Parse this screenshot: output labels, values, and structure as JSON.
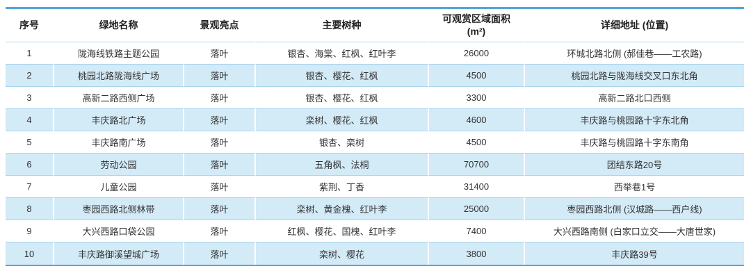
{
  "colors": {
    "accent_border": "#54A7DA",
    "row_separator": "#A9D4EE",
    "alt_row_bg": "#D3EAF7",
    "header_text": "#1F1F1F",
    "body_text": "#333333"
  },
  "table": {
    "headers": [
      {
        "label": "序号"
      },
      {
        "label": "绿地名称"
      },
      {
        "label": "景观亮点"
      },
      {
        "label": "主要树种"
      },
      {
        "label": "可观赏区域面积",
        "unit": "(m²)"
      },
      {
        "label": "详细地址 (位置)"
      }
    ],
    "rows": [
      {
        "no": "1",
        "name": "陇海线铁路主题公园",
        "highlight": "落叶",
        "trees": "银杏、海棠、红枫、红叶李",
        "area": "26000",
        "address": "环城北路北侧 (郝佳巷——工农路)"
      },
      {
        "no": "2",
        "name": "桃园北路陇海线广场",
        "highlight": "落叶",
        "trees": "银杏、樱花、红枫",
        "area": "4500",
        "address": "桃园北路与陇海线交叉口东北角"
      },
      {
        "no": "3",
        "name": "高新二路西侧广场",
        "highlight": "落叶",
        "trees": "银杏、樱花、红枫",
        "area": "3300",
        "address": "高新二路北口西侧"
      },
      {
        "no": "4",
        "name": "丰庆路北广场",
        "highlight": "落叶",
        "trees": "栾树、樱花、红枫",
        "area": "4600",
        "address": "丰庆路与桃园路十字东北角"
      },
      {
        "no": "5",
        "name": "丰庆路南广场",
        "highlight": "落叶",
        "trees": "银杏、栾树",
        "area": "4500",
        "address": "丰庆路与桃园路十字东南角"
      },
      {
        "no": "6",
        "name": "劳动公园",
        "highlight": "落叶",
        "trees": "五角枫、法桐",
        "area": "70700",
        "address": "团结东路20号"
      },
      {
        "no": "7",
        "name": "儿童公园",
        "highlight": "落叶",
        "trees": "紫荆、丁香",
        "area": "31400",
        "address": "西举巷1号"
      },
      {
        "no": "8",
        "name": "枣园西路北侧林带",
        "highlight": "落叶",
        "trees": "栾树、黄金槐、红叶李",
        "area": "25000",
        "address": "枣园西路北侧 (汉城路——西户线)"
      },
      {
        "no": "9",
        "name": "大兴西路口袋公园",
        "highlight": "落叶",
        "trees": "红枫、樱花、国槐、红叶李",
        "area": "7400",
        "address": "大兴西路南侧 (白家口立交——大唐世家)"
      },
      {
        "no": "10",
        "name": "丰庆路御溪望城广场",
        "highlight": "落叶",
        "trees": "栾树、樱花",
        "area": "3800",
        "address": "丰庆路39号"
      }
    ]
  }
}
